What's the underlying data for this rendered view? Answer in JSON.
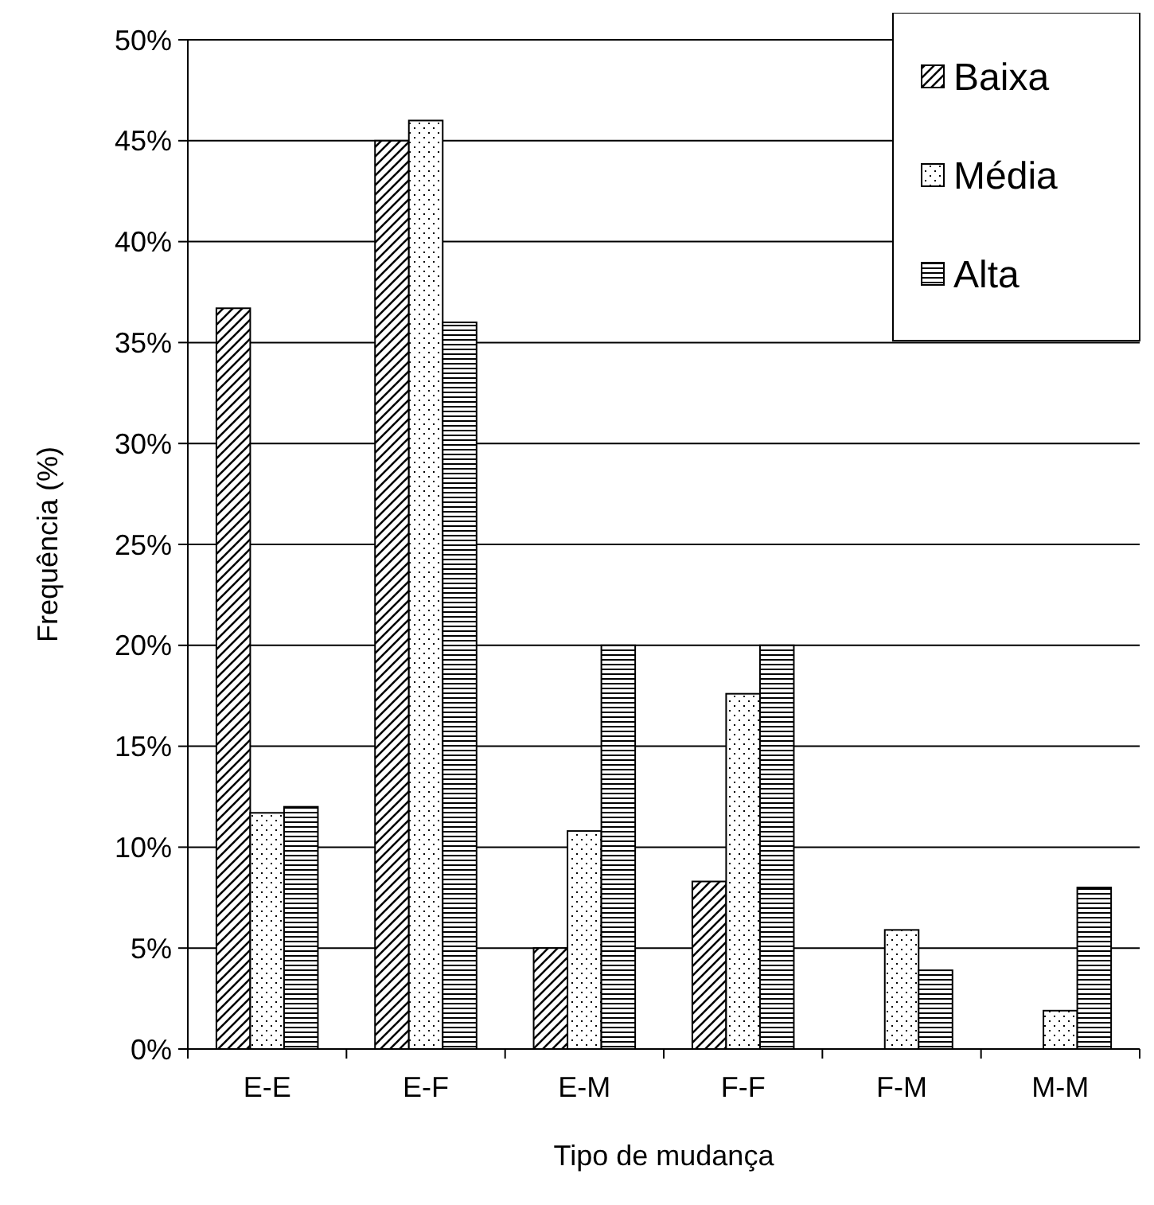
{
  "chart_data": {
    "type": "bar",
    "xlabel": "Tipo de mudança",
    "ylabel": "Frequência (%)",
    "categories": [
      "E-E",
      "E-F",
      "E-M",
      "F-F",
      "F-M",
      "M-M"
    ],
    "series": [
      {
        "name": "Baixa",
        "color": "#000000",
        "values": [
          36.7,
          45,
          5,
          8.3,
          0,
          0
        ]
      },
      {
        "name": "Média",
        "color": "#000000",
        "values": [
          11.7,
          46,
          10.8,
          17.6,
          5.9,
          1.9
        ]
      },
      {
        "name": "Alta",
        "color": "#000000",
        "values": [
          12,
          36,
          20,
          20,
          3.9,
          8
        ]
      }
    ],
    "ylim": [
      0,
      50
    ],
    "yticks": [
      {
        "value": 0,
        "label": "0%"
      },
      {
        "value": 5,
        "label": "5%"
      },
      {
        "value": 10,
        "label": "10%"
      },
      {
        "value": 15,
        "label": "15%"
      },
      {
        "value": 20,
        "label": "20%"
      },
      {
        "value": 25,
        "label": "25%"
      },
      {
        "value": 30,
        "label": "30%"
      },
      {
        "value": 35,
        "label": "35%"
      },
      {
        "value": 40,
        "label": "40%"
      },
      {
        "value": 45,
        "label": "45%"
      },
      {
        "value": 50,
        "label": "50%"
      }
    ],
    "grid": "y",
    "legend": "top right"
  }
}
